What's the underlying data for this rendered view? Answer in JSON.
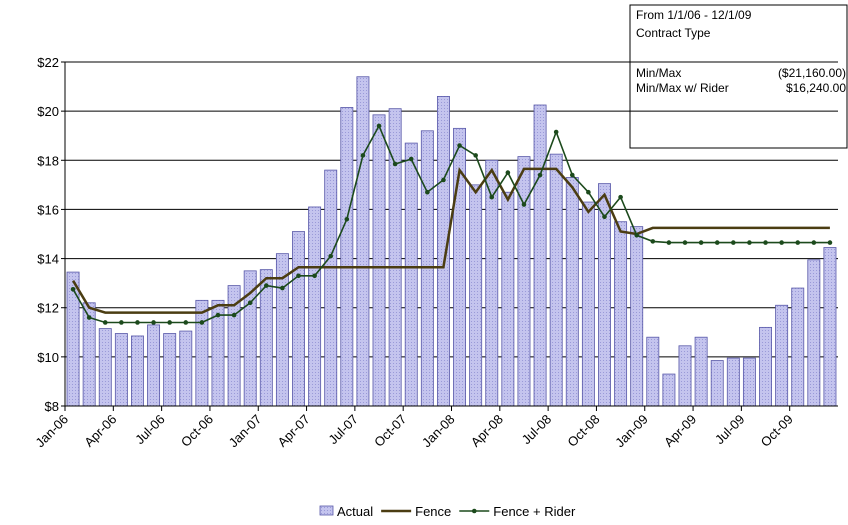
{
  "chart_data": {
    "type": "bar-line",
    "categories": [
      "Jan-06",
      null,
      null,
      "Apr-06",
      null,
      null,
      "Jul-06",
      null,
      null,
      "Oct-06",
      null,
      null,
      "Jan-07",
      null,
      null,
      "Apr-07",
      null,
      null,
      "Jul-07",
      null,
      null,
      "Oct-07",
      null,
      null,
      "Jan-08",
      null,
      null,
      "Apr-08",
      null,
      null,
      "Jul-08",
      null,
      null,
      "Oct-08",
      null,
      null,
      "Jan-09",
      null,
      null,
      "Apr-09",
      null,
      null,
      "Jul-09",
      null,
      null,
      "Oct-09",
      null,
      null
    ],
    "series": [
      {
        "name": "Actual",
        "kind": "bar",
        "color": "#c4c4ee",
        "values": [
          13.45,
          12.2,
          11.15,
          10.95,
          10.85,
          11.3,
          10.95,
          11.05,
          12.3,
          12.3,
          12.9,
          13.5,
          13.55,
          14.2,
          15.1,
          16.1,
          17.6,
          20.15,
          21.4,
          19.85,
          20.1,
          18.7,
          19.2,
          20.6,
          19.3,
          17.0,
          18.0,
          16.7,
          18.15,
          20.25,
          18.25,
          17.3,
          16.3,
          17.05,
          15.5,
          15.3,
          10.8,
          9.3,
          10.45,
          10.8,
          9.85,
          9.95,
          9.95,
          11.2,
          12.1,
          12.8,
          13.95,
          14.45
        ]
      },
      {
        "name": "Fence",
        "kind": "line",
        "color": "#4b3d12",
        "values": [
          13.1,
          12.0,
          11.8,
          11.8,
          11.8,
          11.8,
          11.8,
          11.8,
          11.8,
          12.1,
          12.1,
          12.6,
          13.2,
          13.2,
          13.65,
          13.65,
          13.65,
          13.65,
          13.65,
          13.65,
          13.65,
          13.65,
          13.65,
          13.65,
          17.6,
          16.7,
          17.6,
          16.4,
          17.65,
          17.65,
          17.65,
          16.9,
          15.9,
          16.6,
          15.1,
          15.0,
          15.25,
          15.25,
          15.25,
          15.25,
          15.25,
          15.25,
          15.25,
          15.25,
          15.25,
          15.25,
          15.25,
          15.25
        ]
      },
      {
        "name": "Fence + Rider",
        "kind": "line-markers",
        "color": "#1c4a1c",
        "values": [
          12.75,
          11.6,
          11.4,
          11.4,
          11.4,
          11.4,
          11.4,
          11.4,
          11.4,
          11.7,
          11.7,
          12.2,
          12.9,
          12.8,
          13.3,
          13.3,
          14.1,
          15.6,
          18.2,
          19.4,
          17.85,
          18.05,
          16.7,
          17.2,
          18.6,
          18.2,
          16.5,
          17.5,
          16.2,
          17.4,
          19.15,
          17.4,
          16.7,
          15.7,
          16.5,
          14.95,
          14.7,
          14.65,
          14.65,
          14.65,
          14.65,
          14.65,
          14.65,
          14.65,
          14.65,
          14.65,
          14.65,
          14.65
        ]
      }
    ],
    "ylim": [
      8,
      22
    ],
    "yticks": [
      {
        "value": 8,
        "label": "$8"
      },
      {
        "value": 10,
        "label": "$10"
      },
      {
        "value": 12,
        "label": "$12"
      },
      {
        "value": 14,
        "label": "$14"
      },
      {
        "value": 16,
        "label": "$16"
      },
      {
        "value": 18,
        "label": "$18"
      },
      {
        "value": 20,
        "label": "$20"
      },
      {
        "value": 22,
        "label": "$22"
      }
    ],
    "grid": true,
    "legend": "bottom",
    "annotations": {
      "period": "From 1/1/06 - 12/1/09",
      "contract_type": "Contract Type",
      "rows": [
        {
          "label": "Min/Max",
          "value": "($21,160.00)"
        },
        {
          "label": "Min/Max w/ Rider",
          "value": "$16,240.00"
        }
      ]
    }
  }
}
